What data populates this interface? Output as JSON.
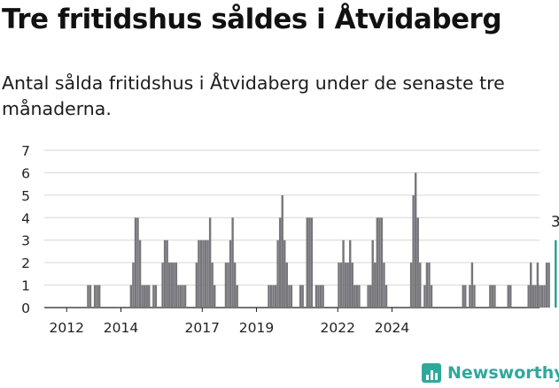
{
  "title": "Tre fritidshus såldes i Åtvidaberg",
  "subtitle": "Antal sålda fritidshus i Åtvidaberg under de senaste tre månaderna.",
  "brand": {
    "name": "Newsworthy",
    "color": "#2fa89c"
  },
  "colors": {
    "bars": "#76767b",
    "highlight": "#2a9d8f",
    "grid": "#d6d6d6"
  },
  "chart_data": {
    "type": "bar",
    "title": "",
    "xlabel": "",
    "ylabel": "",
    "ylim": [
      0,
      7
    ],
    "yticks": [
      0,
      1,
      2,
      3,
      4,
      5,
      6,
      7
    ],
    "x_tick_labels": [
      "2012",
      "2014",
      "2017",
      "2019",
      "2022",
      "2024"
    ],
    "grid": true,
    "start": "2011-07",
    "series": [
      {
        "values": [
          0,
          0,
          0,
          0,
          0,
          0,
          0,
          0,
          0,
          0,
          0,
          0,
          0,
          0,
          0,
          1,
          1,
          0,
          1,
          1,
          1,
          0,
          0,
          0,
          0,
          0,
          0,
          0,
          0,
          0,
          0,
          0,
          0,
          0,
          1,
          2,
          4,
          4,
          3,
          1,
          1,
          1,
          1,
          0,
          1,
          1,
          0,
          0,
          2,
          3,
          3,
          2,
          2,
          2,
          2,
          1,
          1,
          1,
          1,
          0,
          0,
          0,
          0,
          2,
          3,
          3,
          3,
          3,
          3,
          4,
          2,
          1,
          0,
          0,
          0,
          0,
          2,
          2,
          3,
          4,
          2,
          1,
          0,
          0,
          0,
          0,
          0,
          0,
          0,
          0,
          0,
          0,
          0,
          0,
          0,
          1,
          1,
          1,
          1,
          3,
          4,
          5,
          3,
          2,
          1,
          1,
          0,
          0,
          0,
          1,
          1,
          0,
          4,
          4,
          4,
          0,
          1,
          1,
          1,
          1,
          0,
          0,
          0,
          0,
          0,
          0,
          2,
          2,
          3,
          2,
          2,
          3,
          2,
          1,
          1,
          1,
          0,
          0,
          0,
          1,
          1,
          3,
          2,
          4,
          4,
          4,
          2,
          1,
          0,
          0,
          0,
          0,
          0,
          0,
          0,
          0,
          0,
          0,
          2,
          5,
          6,
          4,
          2,
          0,
          1,
          2,
          2,
          1,
          0,
          0,
          0,
          0,
          0,
          0,
          0,
          0,
          0,
          0,
          0,
          0,
          0,
          1,
          1,
          0,
          1,
          2,
          1,
          0,
          0,
          0,
          0,
          0,
          0,
          1,
          1,
          1,
          0,
          0,
          0,
          0,
          0,
          1,
          1,
          0,
          0,
          0,
          0,
          0,
          0,
          0,
          1,
          2,
          1,
          1,
          2,
          1,
          1,
          1,
          2,
          2,
          0,
          0,
          3
        ]
      }
    ],
    "last_value_label": "3"
  }
}
